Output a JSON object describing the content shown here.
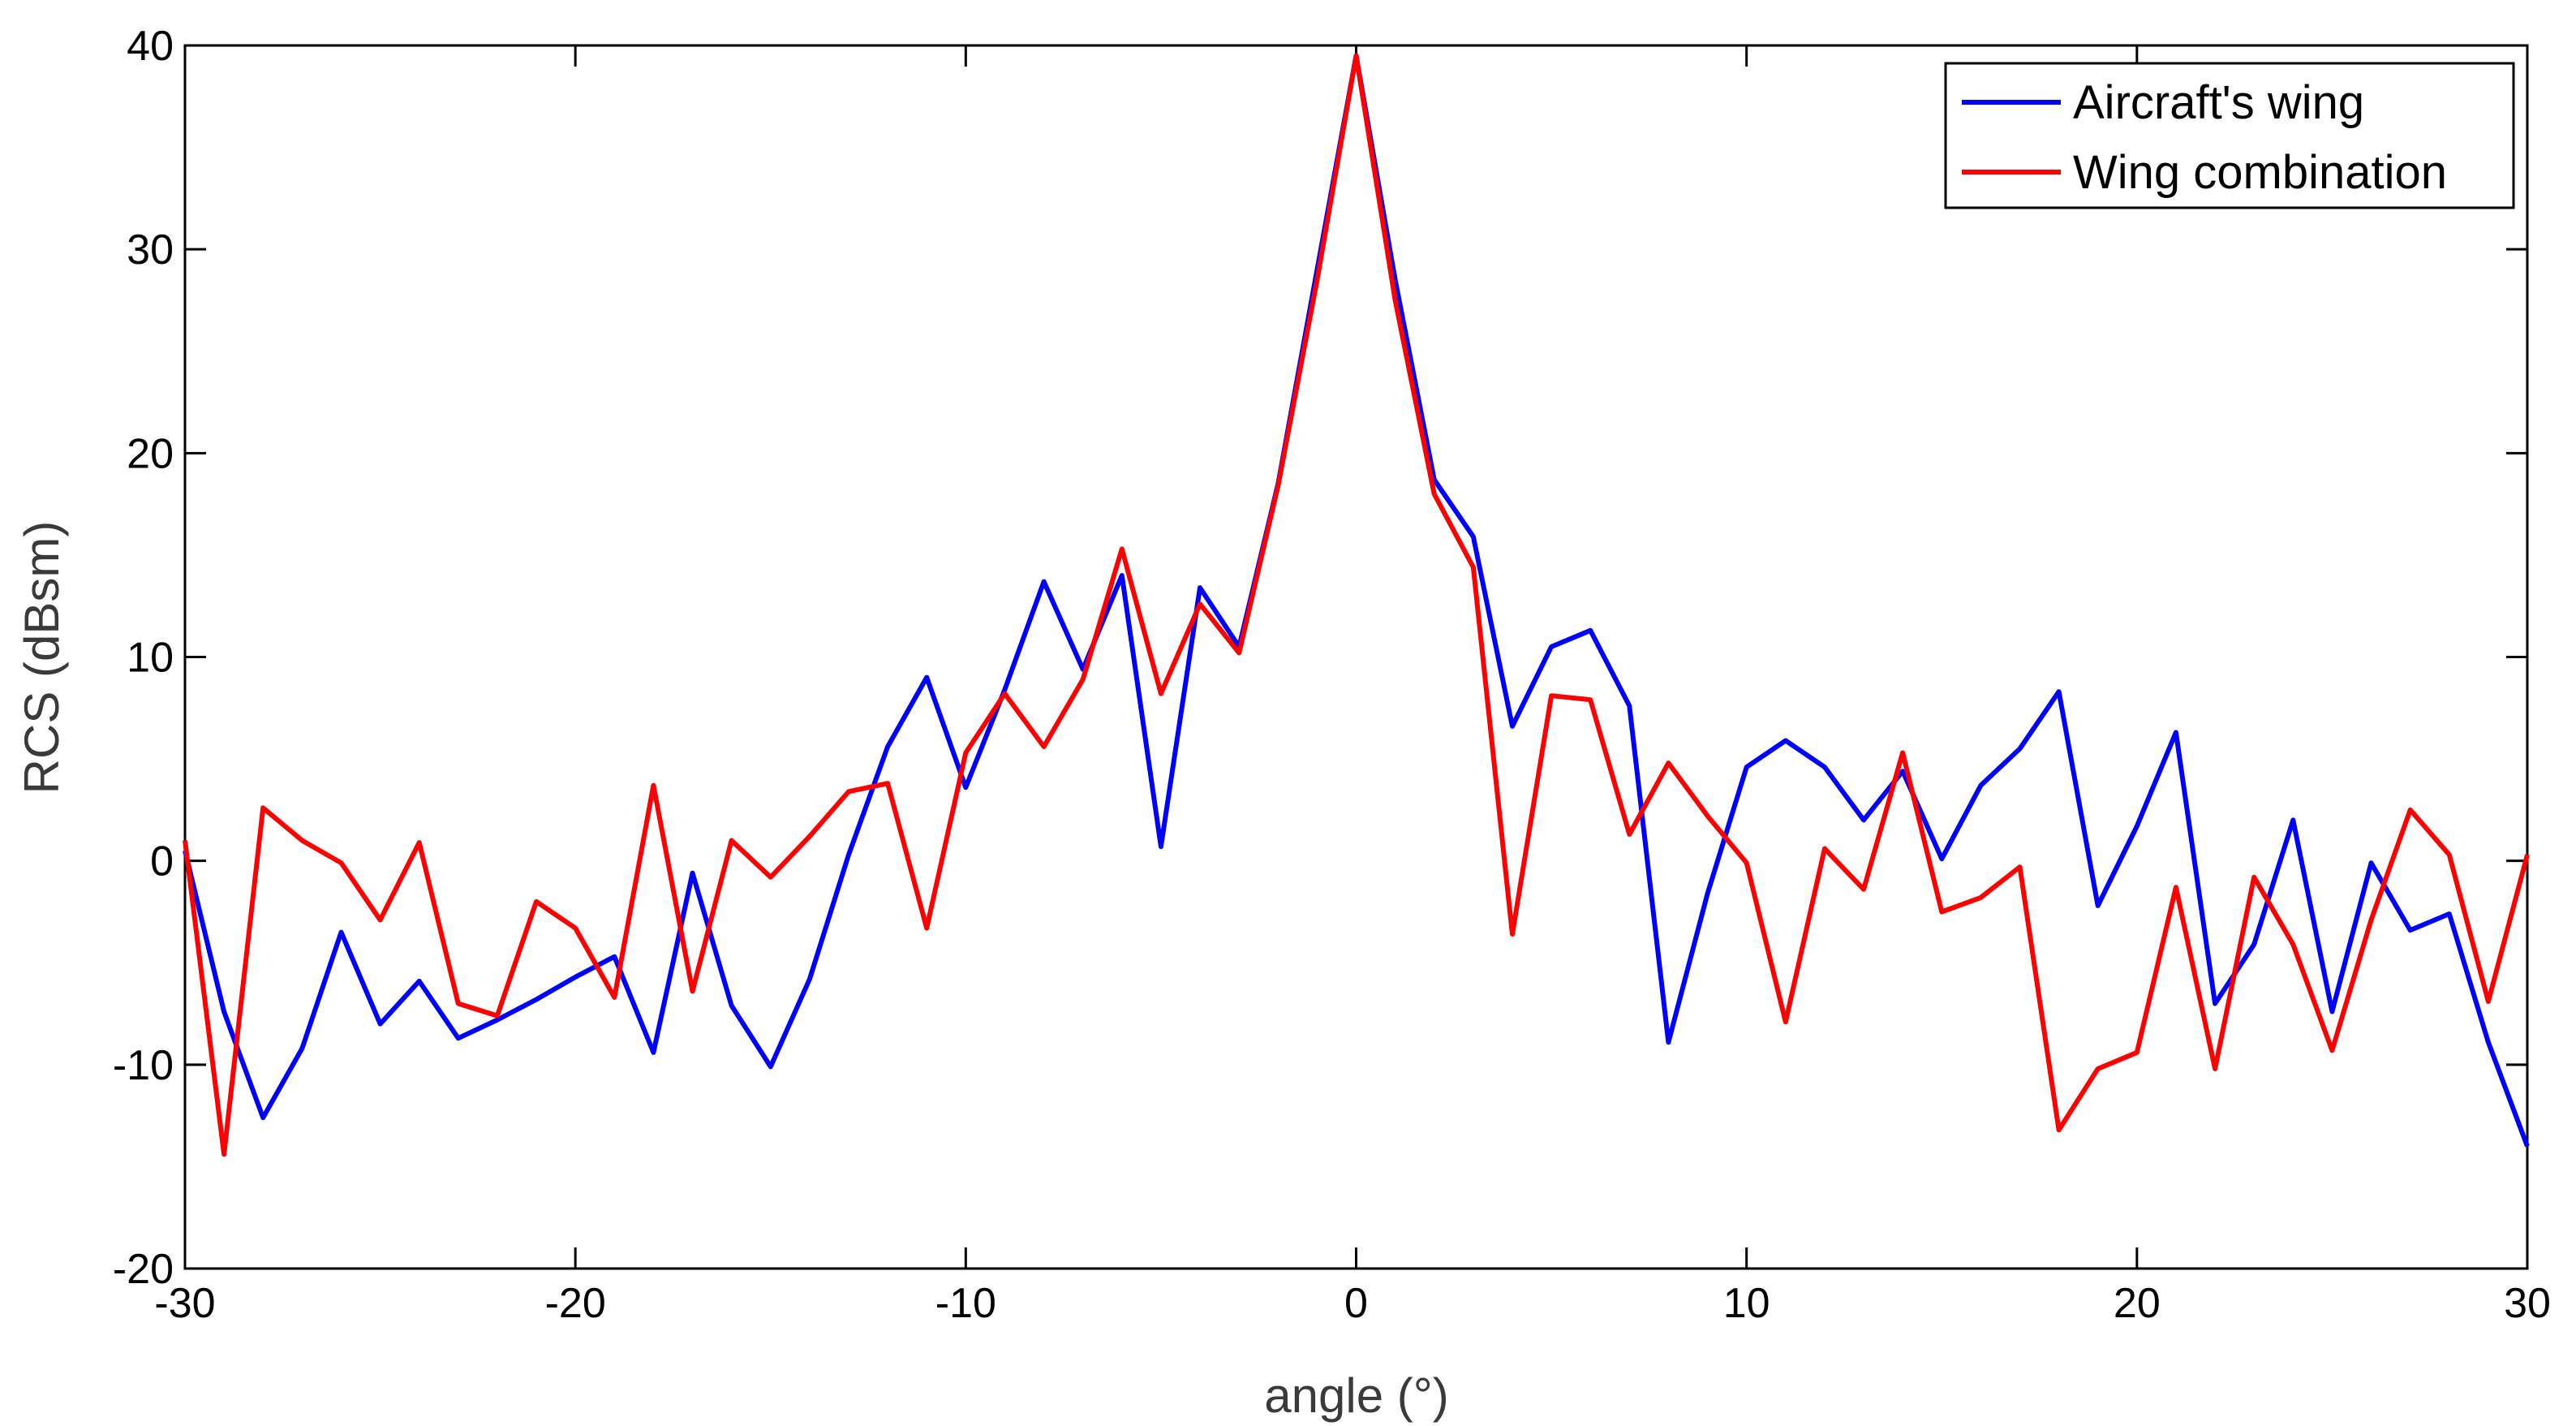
{
  "chart_data": {
    "type": "line",
    "title": "",
    "xlabel": "angle (°)",
    "ylabel": "RCS (dBsm)",
    "xlim": [
      -30,
      30
    ],
    "ylim": [
      -20,
      40
    ],
    "xticks": [
      -30,
      -20,
      -10,
      0,
      10,
      20,
      30
    ],
    "yticks": [
      -20,
      -10,
      0,
      10,
      20,
      30,
      40
    ],
    "grid": false,
    "legend_position": "top-right",
    "x": [
      -30,
      -29,
      -28,
      -27,
      -26,
      -25,
      -24,
      -23,
      -22,
      -21,
      -20,
      -19,
      -18,
      -17,
      -16,
      -15,
      -14,
      -13,
      -12,
      -11,
      -10,
      -9,
      -8,
      -7,
      -6,
      -5,
      -4,
      -3,
      -2,
      -1,
      0,
      1,
      2,
      3,
      4,
      5,
      6,
      7,
      8,
      9,
      10,
      11,
      12,
      13,
      14,
      15,
      16,
      17,
      18,
      19,
      20,
      21,
      22,
      23,
      24,
      25,
      26,
      27,
      28,
      29,
      30
    ],
    "series": [
      {
        "name": "Aircraft's wing",
        "color": "#0000ff",
        "values": [
          0.5,
          -7.4,
          -12.6,
          -9.2,
          -3.5,
          -8.0,
          -5.9,
          -8.7,
          -7.8,
          -6.8,
          -5.7,
          -4.7,
          -9.4,
          -0.6,
          -7.1,
          -10.1,
          -5.8,
          0.3,
          5.6,
          9.0,
          3.6,
          8.4,
          13.7,
          9.4,
          14.0,
          0.7,
          13.4,
          10.5,
          18.5,
          29.0,
          39.5,
          28.5,
          18.7,
          15.9,
          6.6,
          10.5,
          11.3,
          7.6,
          -8.9,
          -1.6,
          4.6,
          5.9,
          4.6,
          2.0,
          4.4,
          0.1,
          3.7,
          5.5,
          8.3,
          -2.2,
          1.7,
          6.3,
          -7.0,
          -4.1,
          2.0,
          -7.4,
          -0.1,
          -3.4,
          -2.6,
          -8.9,
          -14.0
        ]
      },
      {
        "name": "Wing combination",
        "color": "#ff0000",
        "values": [
          1.0,
          -14.4,
          2.6,
          1.0,
          -0.1,
          -2.9,
          0.9,
          -7.0,
          -7.6,
          -2.0,
          -3.3,
          -6.7,
          3.7,
          -6.4,
          1.0,
          -0.8,
          1.2,
          3.4,
          3.8,
          -3.3,
          5.3,
          8.2,
          5.6,
          8.9,
          15.3,
          8.2,
          12.6,
          10.2,
          18.4,
          28.5,
          39.5,
          27.5,
          18.0,
          14.4,
          -3.6,
          8.1,
          7.9,
          1.3,
          4.8,
          2.2,
          -0.1,
          -7.9,
          0.6,
          -1.4,
          5.3,
          -2.5,
          -1.8,
          -0.3,
          -13.2,
          -10.2,
          -9.4,
          -1.3,
          -10.2,
          -0.8,
          -4.1,
          -9.3,
          -2.9,
          2.5,
          0.3,
          -6.9,
          0.3
        ]
      }
    ]
  }
}
